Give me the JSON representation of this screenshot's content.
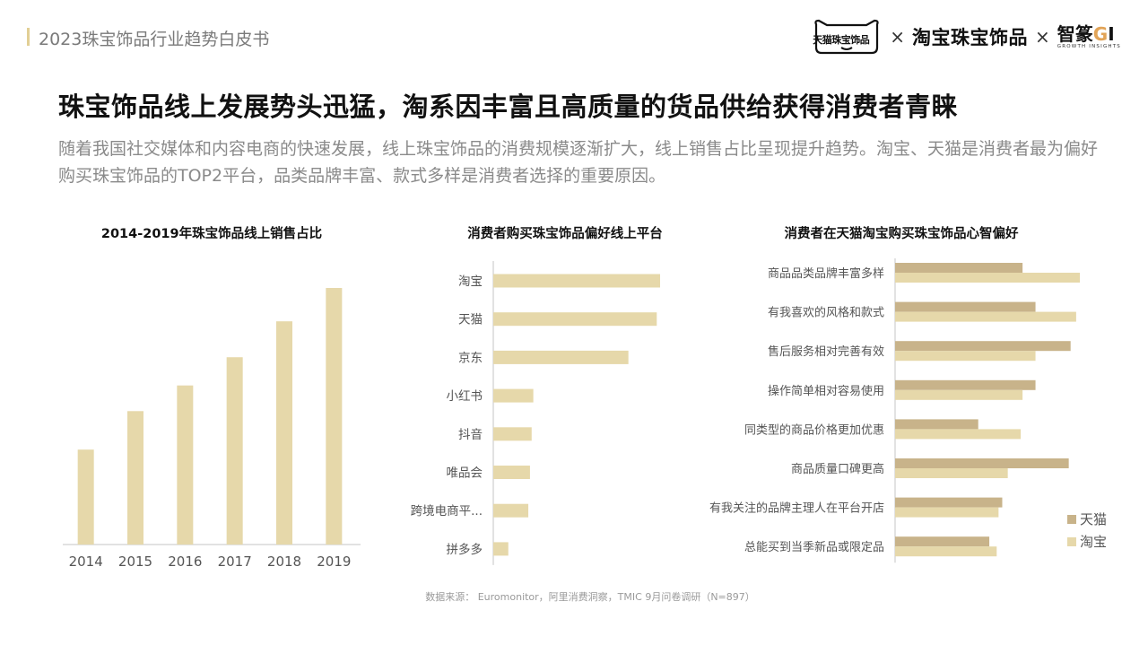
{
  "header": {
    "report_title": "2023珠宝饰品行业趋势白皮书",
    "logos": {
      "tmall": "天猫珠宝饰品",
      "separator": "×",
      "taobao": "淘宝珠宝饰品",
      "gi_main": "智篆",
      "gi_g": "G",
      "gi_i": "I",
      "gi_sub": "GROWTH INSIGHTS"
    }
  },
  "headline": "珠宝饰品线上发展势头迅猛，淘系因丰富且高质量的货品供给获得消费者青睐",
  "intro": "随着我国社交媒体和内容电商的快速发展，线上珠宝饰品的消费规模逐渐扩大，线上销售占比呈现提升趋势。淘宝、天猫是消费者最为偏好购买珠宝饰品的TOP2平台，品类品牌丰富、款式多样是消费者选择的重要原因。",
  "colors": {
    "bar_light": "#e6d8aa",
    "bar_dark": "#c8b38a",
    "axis": "#d9d9d9",
    "accent": "#e2cf95"
  },
  "chart_data": [
    {
      "type": "bar",
      "title": "2014-2019年珠宝饰品线上销售占比",
      "categories": [
        "2014",
        "2015",
        "2016",
        "2017",
        "2018",
        "2019"
      ],
      "values": [
        37,
        52,
        62,
        73,
        87,
        100
      ],
      "ylim": [
        0,
        100
      ]
    },
    {
      "type": "bar",
      "orientation": "horizontal",
      "title": "消费者购买珠宝饰品偏好线上平台",
      "categories": [
        "淘宝",
        "天猫",
        "京东",
        "小红书",
        "抖音",
        "唯品会",
        "跨境电商平...",
        "拼多多"
      ],
      "values": [
        100,
        98,
        81,
        24,
        23,
        22,
        21,
        9
      ],
      "xlim": [
        0,
        100
      ]
    },
    {
      "type": "bar",
      "orientation": "horizontal",
      "title": "消费者在天猫淘宝购买珠宝饰品心智偏好",
      "categories": [
        "商品品类品牌丰富多样",
        "有我喜欢的风格和款式",
        "售后服务相对完善有效",
        "操作简单相对容易使用",
        "同类型的商品价格更加优惠",
        "商品质量口碑更高",
        "有我关注的品牌主理人在平台开店",
        "总能买到当季新品或限定品"
      ],
      "series": [
        {
          "name": "天猫",
          "values": [
            69,
            76,
            95,
            76,
            45,
            94,
            58,
            51
          ]
        },
        {
          "name": "淘宝",
          "values": [
            100,
            98,
            76,
            69,
            68,
            61,
            56,
            55
          ]
        }
      ],
      "xlim": [
        0,
        100
      ],
      "legend": "bottom-right"
    }
  ],
  "source": "数据来源：  Euromonitor，阿里消费洞察，TMIC 9月问卷调研（N=897）"
}
